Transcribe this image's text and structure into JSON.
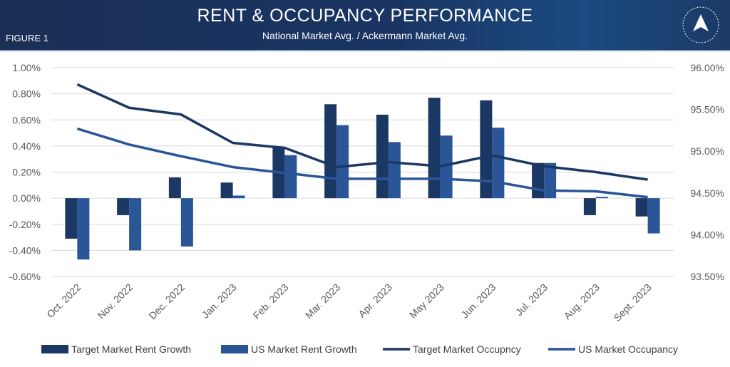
{
  "header": {
    "title": "RENT & OCCUPANCY PERFORMANCE",
    "subtitle": "National Market Avg. / Ackermann Market Avg.",
    "figure_label": "FIGURE 1",
    "logo_text": "BUILDING COMMUNITY TOGETHER · ACKERMANN GROUP"
  },
  "colors": {
    "target": "#1b3763",
    "us": "#2a5597",
    "grid": "#d9d9d9",
    "header": "#1b2f55"
  },
  "chart_data": {
    "type": "bar+line",
    "title": "RENT & OCCUPANCY PERFORMANCE",
    "subtitle": "National Market Avg. / Ackermann Market Avg.",
    "categories": [
      "Oct. 2022",
      "Nov. 2022",
      "Dec. 2022",
      "Jan. 2023",
      "Feb. 2023",
      "Mar. 2023",
      "Apr. 2023",
      "May 2023",
      "Jun. 2023",
      "Jul. 2023",
      "Aug. 2023",
      "Sept. 2023"
    ],
    "left_axis": {
      "ylim": [
        -0.6,
        1.0
      ],
      "ticks": [
        "1.00%",
        "0.80%",
        "0.60%",
        "0.40%",
        "0.20%",
        "0.00%",
        "-0.20%",
        "-0.40%",
        "-0.60%"
      ]
    },
    "right_axis": {
      "ylim": [
        93.5,
        96.0
      ],
      "ticks": [
        "96.00%",
        "95.50%",
        "95.00%",
        "94.50%",
        "94.00%",
        "93.50%"
      ]
    },
    "grid": true,
    "legend_position": "bottom",
    "series": [
      {
        "name": "Target Market Rent Growth",
        "type": "bar",
        "axis": "left",
        "values": [
          -0.31,
          -0.13,
          0.16,
          0.12,
          0.39,
          0.72,
          0.64,
          0.77,
          0.75,
          0.27,
          -0.13,
          -0.14
        ]
      },
      {
        "name": "US Market Rent Growth",
        "type": "bar",
        "axis": "left",
        "values": [
          -0.47,
          -0.4,
          -0.37,
          0.02,
          0.33,
          0.56,
          0.43,
          0.48,
          0.54,
          0.27,
          0.01,
          -0.27
        ]
      },
      {
        "name": "Target Market Occupncy",
        "type": "line",
        "axis": "right",
        "values": [
          95.8,
          95.52,
          95.44,
          95.1,
          95.04,
          94.81,
          94.87,
          94.82,
          94.95,
          94.82,
          94.75,
          94.66
        ]
      },
      {
        "name": "US Market Occupancy",
        "type": "line",
        "axis": "right",
        "values": [
          95.27,
          95.08,
          94.94,
          94.81,
          94.74,
          94.67,
          94.67,
          94.67,
          94.64,
          94.53,
          94.52,
          94.45
        ]
      }
    ]
  }
}
